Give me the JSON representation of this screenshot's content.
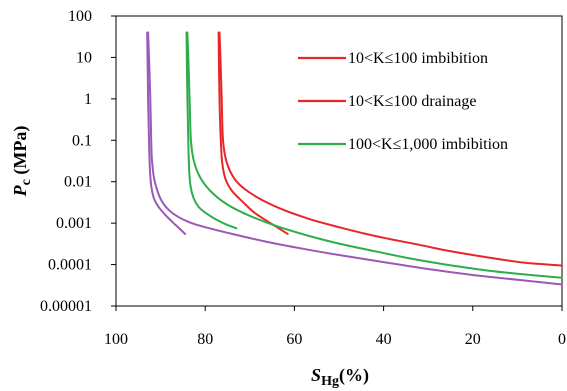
{
  "chart_data": {
    "type": "line",
    "xlabel": {
      "main": "S",
      "sub": "Hg",
      "unit": "(%)"
    },
    "ylabel": {
      "main": "P",
      "sub": "c",
      "unit": " (MPa)"
    },
    "xlim": [
      100,
      0
    ],
    "ylim": [
      1e-05,
      100
    ],
    "yscale": "log",
    "x_ticks": [
      "100",
      "80",
      "60",
      "40",
      "20",
      "0"
    ],
    "y_ticks": [
      "100",
      "10",
      "1",
      "0.1",
      "0.01",
      "0.001",
      "0.0001",
      "0.00001"
    ],
    "grid": false,
    "legend_position": "top-right",
    "series": [
      {
        "name": "10<K≤100 imbibition",
        "color": "#e8262a",
        "points": [
          [
            76.8,
            40
          ],
          [
            76.6,
            10
          ],
          [
            76.3,
            1
          ],
          [
            76.0,
            0.1
          ],
          [
            75.2,
            0.03
          ],
          [
            73.5,
            0.012
          ],
          [
            71,
            0.0065
          ],
          [
            67,
            0.0035
          ],
          [
            62,
            0.002
          ],
          [
            56,
            0.0012
          ],
          [
            50,
            0.0008
          ],
          [
            44,
            0.00055
          ],
          [
            38,
            0.0004
          ],
          [
            32,
            0.0003
          ],
          [
            26,
            0.00022
          ],
          [
            20,
            0.00017
          ],
          [
            14,
            0.000135
          ],
          [
            8,
            0.00011
          ],
          [
            0,
            9.5e-05
          ]
        ]
      },
      {
        "name": "10<K≤100 drainage",
        "color": "#e8262a",
        "points": [
          [
            77.0,
            40
          ],
          [
            76.8,
            1
          ],
          [
            76.5,
            0.1
          ],
          [
            76.2,
            0.03
          ],
          [
            75.5,
            0.012
          ],
          [
            74,
            0.006
          ],
          [
            71.5,
            0.0032
          ],
          [
            69,
            0.0018
          ],
          [
            66,
            0.0011
          ],
          [
            63.5,
            0.00075
          ],
          [
            61.5,
            0.00055
          ]
        ]
      },
      {
        "name": "100<K≤1,000 imbibition",
        "color": "#2ead4b",
        "points": [
          [
            84.0,
            40
          ],
          [
            83.8,
            10
          ],
          [
            83.5,
            1
          ],
          [
            83.2,
            0.1
          ],
          [
            82.5,
            0.03
          ],
          [
            81,
            0.012
          ],
          [
            78.5,
            0.0055
          ],
          [
            75,
            0.0028
          ],
          [
            70,
            0.0015
          ],
          [
            64,
            0.00085
          ],
          [
            57,
            0.0005
          ],
          [
            50,
            0.00032
          ],
          [
            42,
            0.00021
          ],
          [
            34,
            0.00014
          ],
          [
            26,
            0.0001
          ],
          [
            18,
            7.5e-05
          ],
          [
            10,
            6e-05
          ],
          [
            0,
            4.8e-05
          ]
        ]
      },
      {
        "name": "",
        "color": "#2ead4b",
        "points": [
          [
            84.2,
            40
          ],
          [
            84.0,
            1
          ],
          [
            83.8,
            0.1
          ],
          [
            83.6,
            0.02
          ],
          [
            83.3,
            0.008
          ],
          [
            82.6,
            0.004
          ],
          [
            81.5,
            0.0025
          ],
          [
            80,
            0.0018
          ],
          [
            78,
            0.0013
          ],
          [
            75.5,
            0.00095
          ],
          [
            73,
            0.00075
          ]
        ]
      },
      {
        "name": "",
        "color": "#9b59b6",
        "points": [
          [
            92.8,
            40
          ],
          [
            92.6,
            10
          ],
          [
            92.3,
            1
          ],
          [
            92.1,
            0.1
          ],
          [
            91.9,
            0.03
          ],
          [
            91.3,
            0.01
          ],
          [
            89.8,
            0.0035
          ],
          [
            87.5,
            0.0018
          ],
          [
            84,
            0.0011
          ],
          [
            80,
            0.0008
          ],
          [
            74,
            0.00055
          ],
          [
            66,
            0.00035
          ],
          [
            58,
            0.00024
          ],
          [
            50,
            0.00017
          ],
          [
            40,
            0.000115
          ],
          [
            30,
            7.8e-05
          ],
          [
            20,
            5.6e-05
          ],
          [
            10,
            4.3e-05
          ],
          [
            0,
            3.3e-05
          ]
        ]
      },
      {
        "name": "",
        "color": "#9b59b6",
        "points": [
          [
            93.0,
            40
          ],
          [
            92.8,
            1
          ],
          [
            92.6,
            0.1
          ],
          [
            92.4,
            0.02
          ],
          [
            92.1,
            0.008
          ],
          [
            91.5,
            0.004
          ],
          [
            90.5,
            0.0025
          ],
          [
            89,
            0.0016
          ],
          [
            87.5,
            0.0011
          ],
          [
            86,
            0.00078
          ],
          [
            84.5,
            0.00055
          ]
        ]
      }
    ]
  }
}
